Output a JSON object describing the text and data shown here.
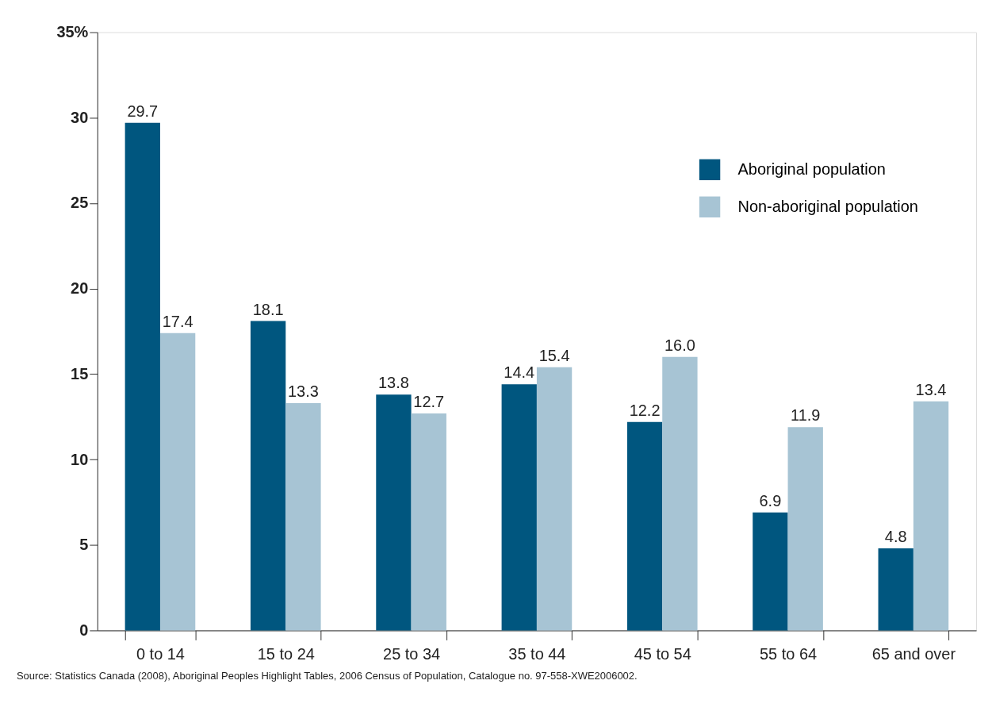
{
  "chart_data": {
    "type": "bar",
    "categories": [
      "0 to 14",
      "15 to 24",
      "25 to 34",
      "35 to 44",
      "45 to 54",
      "55 to 64",
      "65 and over"
    ],
    "series": [
      {
        "name": "Aboriginal population",
        "color": "#00567f",
        "values": [
          29.7,
          18.1,
          13.8,
          14.4,
          12.2,
          6.9,
          4.8
        ],
        "value_labels": [
          "29.7",
          "18.1",
          "13.8",
          "14.4",
          "12.2",
          "6.9",
          "4.8"
        ]
      },
      {
        "name": "Non-aboriginal population",
        "color": "#a7c4d4",
        "values": [
          17.4,
          13.3,
          12.7,
          15.4,
          16.0,
          11.9,
          13.4
        ],
        "value_labels": [
          "17.4",
          "13.3",
          "12.7",
          "15.4",
          "16.0",
          "11.9",
          "13.4"
        ]
      }
    ],
    "ylim": [
      0,
      35
    ],
    "yticks": [
      0,
      5,
      10,
      15,
      20,
      25,
      30,
      {
        "value": 35,
        "label": "35%"
      }
    ],
    "grid": false,
    "legend": "top right",
    "annotations": [
      "Source: Statistics Canada (2008), Aboriginal Peoples Highlight Tables, 2006 Census of Population, Catalogue no. 97-558-XWE2006002."
    ]
  }
}
